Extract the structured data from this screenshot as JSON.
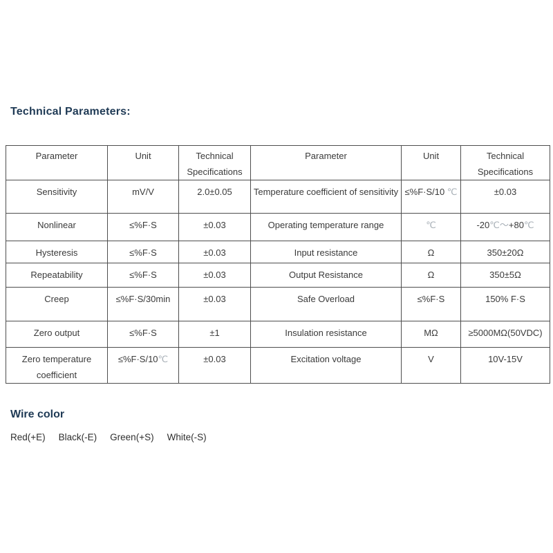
{
  "page": {
    "title": "Technical Parameters:",
    "accent_color": "#1f3a55",
    "text_color": "#3a3a3a",
    "border_color": "#4d4d4d",
    "background_color": "#ffffff"
  },
  "table": {
    "columns": [
      "Parameter",
      "Unit",
      "Technical Specifications",
      "Parameter",
      "Unit",
      "Technical Specifications"
    ],
    "rows": [
      [
        "Sensitivity",
        "mV/V",
        "2.0±0.05",
        "Temperature coefficient of sensitivity",
        "≤%F·S/10 ℃",
        "±0.03"
      ],
      [
        "Nonlinear",
        "≤%F·S",
        "±0.03",
        "Operating temperature range",
        "℃",
        "-20℃～+80℃"
      ],
      [
        "Hysteresis",
        "≤%F·S",
        "±0.03",
        "Input resistance",
        "Ω",
        "350±20Ω"
      ],
      [
        "Repeatability",
        "≤%F·S",
        "±0.03",
        "Output Resistance",
        "Ω",
        "350±5Ω"
      ],
      [
        "Creep",
        "≤%F·S/30min",
        "±0.03",
        "Safe Overload",
        "≤%F·S",
        "150% F·S"
      ],
      [
        "Zero output",
        "≤%F·S",
        "±1",
        "Insulation resistance",
        "MΩ",
        "≥5000MΩ(50VDC)"
      ],
      [
        "Zero temperature coefficient",
        "≤%F·S/10℃",
        "±0.03",
        "Excitation voltage",
        "V",
        "10V-15V"
      ]
    ]
  },
  "wire": {
    "heading": "Wire color",
    "items": [
      "Red(+E)",
      "Black(-E)",
      "Green(+S)",
      "White(-S)"
    ]
  }
}
